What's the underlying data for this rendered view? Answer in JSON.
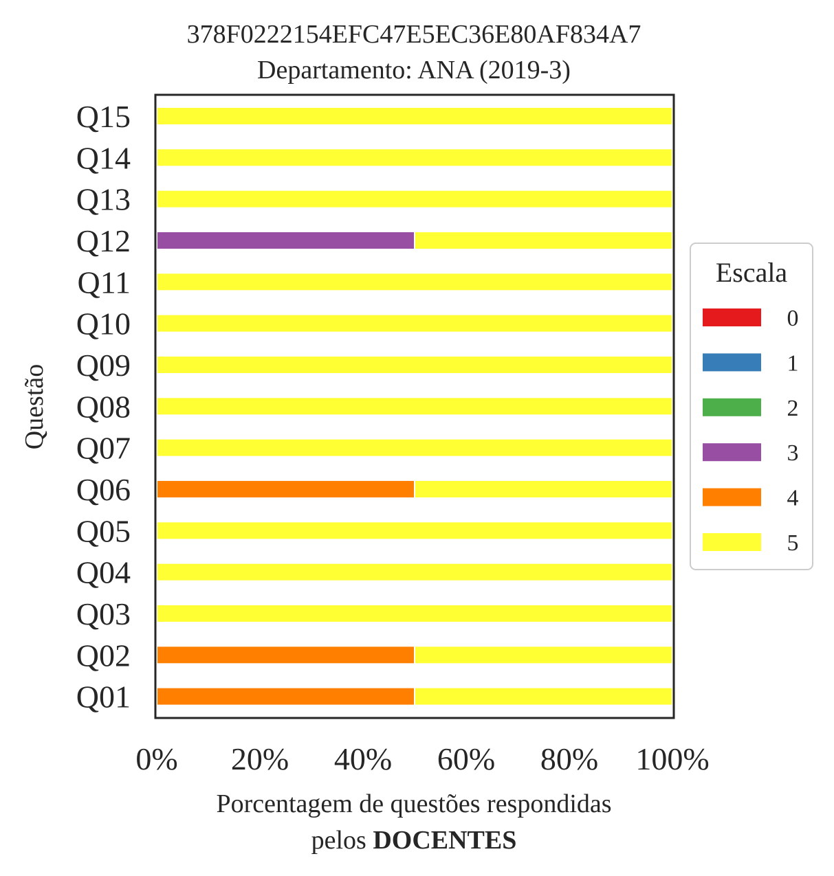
{
  "chart_data": {
    "type": "bar",
    "orientation": "horizontal",
    "stacked": true,
    "title": "378F0222154EFC47E5EC36E80AF834A7",
    "subtitle": "Departamento: ANA (2019-3)",
    "xlabel_line1": "Porcentagem de questões respondidas",
    "xlabel_line2_prefix": "pelos ",
    "xlabel_line2_bold": "DOCENTES",
    "ylabel": "Questão",
    "xlim": [
      0,
      100
    ],
    "xticks": [
      "0%",
      "20%",
      "40%",
      "60%",
      "80%",
      "100%"
    ],
    "categories": [
      "Q01",
      "Q02",
      "Q03",
      "Q04",
      "Q05",
      "Q06",
      "Q07",
      "Q08",
      "Q09",
      "Q10",
      "Q11",
      "Q12",
      "Q13",
      "Q14",
      "Q15"
    ],
    "series": [
      {
        "name": "0",
        "color": "#e41a1c",
        "values": [
          0,
          0,
          0,
          0,
          0,
          0,
          0,
          0,
          0,
          0,
          0,
          0,
          0,
          0,
          0
        ]
      },
      {
        "name": "1",
        "color": "#377eb8",
        "values": [
          0,
          0,
          0,
          0,
          0,
          0,
          0,
          0,
          0,
          0,
          0,
          0,
          0,
          0,
          0
        ]
      },
      {
        "name": "2",
        "color": "#4daf4a",
        "values": [
          0,
          0,
          0,
          0,
          0,
          0,
          0,
          0,
          0,
          0,
          0,
          0,
          0,
          0,
          0
        ]
      },
      {
        "name": "3",
        "color": "#984ea3",
        "values": [
          0,
          0,
          0,
          0,
          0,
          0,
          0,
          0,
          0,
          0,
          0,
          50,
          0,
          0,
          0
        ]
      },
      {
        "name": "4",
        "color": "#ff7f00",
        "values": [
          50,
          50,
          0,
          0,
          0,
          50,
          0,
          0,
          0,
          0,
          0,
          0,
          0,
          0,
          0
        ]
      },
      {
        "name": "5",
        "color": "#ffff33",
        "values": [
          50,
          50,
          100,
          100,
          100,
          50,
          100,
          100,
          100,
          100,
          100,
          50,
          100,
          100,
          100
        ]
      }
    ],
    "legend_title": "Escala",
    "legend_position": "center-right",
    "grid": false
  }
}
